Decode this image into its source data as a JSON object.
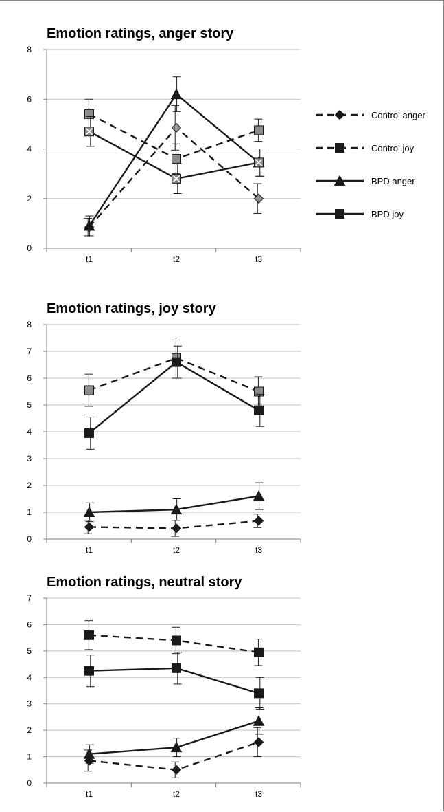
{
  "chart_data": [
    {
      "type": "line",
      "title": "Emotion ratings, anger story",
      "xlabel": "",
      "ylabel": "",
      "categories": [
        "t1",
        "t2",
        "t3"
      ],
      "ylim": [
        0,
        8
      ],
      "yticks": [
        "0",
        "2",
        "4",
        "6",
        "8"
      ],
      "grid": "horizontal",
      "legend": "right",
      "series": [
        {
          "name": "Control anger",
          "values": [
            0.85,
            4.85,
            2.0
          ],
          "error": [
            0.35,
            0.9,
            0.6
          ],
          "line": "dashed",
          "marker": "diamond",
          "marker_color": "#8c8c8c"
        },
        {
          "name": "Control joy",
          "values": [
            5.4,
            3.6,
            4.75
          ],
          "error": [
            0.6,
            0.6,
            0.45
          ],
          "line": "dashed",
          "marker": "square",
          "marker_color": "#8c8c8c"
        },
        {
          "name": "BPD anger",
          "values": [
            0.9,
            6.2,
            3.45
          ],
          "error": [
            0.4,
            0.7,
            0.55
          ],
          "line": "solid",
          "marker": "triangle",
          "marker_color": "#1a1a1a"
        },
        {
          "name": "BPD joy",
          "values": [
            4.7,
            2.8,
            3.45
          ],
          "error": [
            0.6,
            0.6,
            0.55
          ],
          "line": "solid",
          "marker": "x-square",
          "marker_color": "#8c8c8c"
        }
      ]
    },
    {
      "type": "line",
      "title": "Emotion ratings, joy story",
      "xlabel": "",
      "ylabel": "",
      "categories": [
        "t1",
        "t2",
        "t3"
      ],
      "ylim": [
        0,
        8
      ],
      "yticks": [
        "0",
        "1",
        "2",
        "3",
        "4",
        "5",
        "6",
        "7",
        "8"
      ],
      "grid": "horizontal",
      "series": [
        {
          "name": "Control anger",
          "values": [
            0.45,
            0.4,
            0.68
          ],
          "error": [
            0.25,
            0.3,
            0.25
          ],
          "line": "dashed",
          "marker": "diamond",
          "marker_color": "#1a1a1a"
        },
        {
          "name": "Control joy",
          "values": [
            5.55,
            6.75,
            5.5
          ],
          "error": [
            0.6,
            0.75,
            0.55
          ],
          "line": "dashed",
          "marker": "square",
          "marker_color": "#8c8c8c"
        },
        {
          "name": "BPD anger",
          "values": [
            1.0,
            1.1,
            1.6
          ],
          "error": [
            0.35,
            0.4,
            0.5
          ],
          "line": "solid",
          "marker": "triangle",
          "marker_color": "#1a1a1a"
        },
        {
          "name": "BPD joy",
          "values": [
            3.95,
            6.6,
            4.8
          ],
          "error": [
            0.6,
            0.6,
            0.6
          ],
          "line": "solid",
          "marker": "square",
          "marker_color": "#1a1a1a"
        }
      ]
    },
    {
      "type": "line",
      "title": "Emotion ratings, neutral story",
      "xlabel": "",
      "ylabel": "",
      "categories": [
        "t1",
        "t2",
        "t3"
      ],
      "ylim": [
        0,
        7
      ],
      "yticks": [
        "0",
        "1",
        "2",
        "3",
        "4",
        "5",
        "6",
        "7"
      ],
      "grid": "horizontal",
      "series": [
        {
          "name": "Control anger",
          "values": [
            0.85,
            0.5,
            1.55
          ],
          "error": [
            0.4,
            0.3,
            0.55
          ],
          "line": "dashed",
          "marker": "diamond",
          "marker_color": "#1a1a1a"
        },
        {
          "name": "Control joy",
          "values": [
            5.6,
            5.4,
            4.95
          ],
          "error": [
            0.55,
            0.5,
            0.5
          ],
          "line": "dashed",
          "marker": "square",
          "marker_color": "#1a1a1a"
        },
        {
          "name": "BPD anger",
          "values": [
            1.1,
            1.35,
            2.35
          ],
          "error": [
            0.35,
            0.35,
            0.5
          ],
          "line": "solid",
          "marker": "triangle",
          "marker_color": "#1a1a1a"
        },
        {
          "name": "BPD joy",
          "values": [
            4.25,
            4.35,
            3.4
          ],
          "error": [
            0.6,
            0.6,
            0.6
          ],
          "line": "solid",
          "marker": "square",
          "marker_color": "#1a1a1a"
        }
      ]
    }
  ],
  "legend": {
    "items": [
      {
        "label": "Control anger",
        "line": "dashed",
        "marker": "diamond"
      },
      {
        "label": "Control joy",
        "line": "dashed",
        "marker": "square"
      },
      {
        "label": "BPD anger",
        "line": "solid",
        "marker": "triangle"
      },
      {
        "label": "BPD joy",
        "line": "solid",
        "marker": "square"
      }
    ]
  },
  "colors": {
    "line": "#1a1a1a",
    "grid": "#bfbfbf",
    "axis": "#808080",
    "marker_gray": "#8c8c8c"
  }
}
